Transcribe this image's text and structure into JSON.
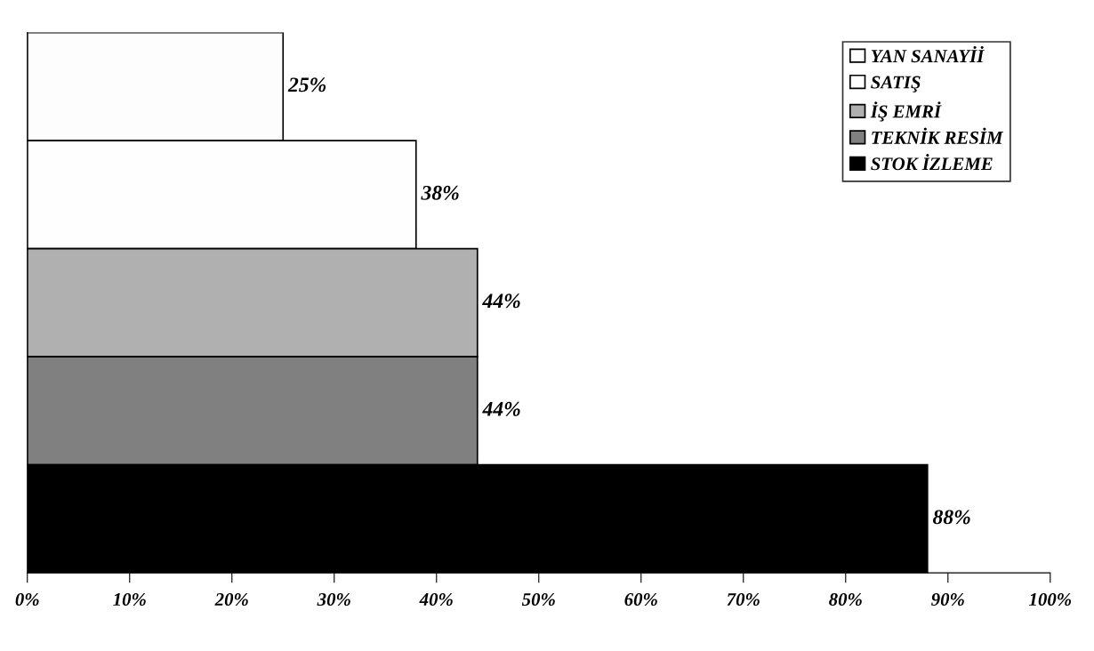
{
  "chart_data": {
    "type": "bar",
    "orientation": "horizontal",
    "categories": [
      null,
      null,
      null,
      null,
      null
    ],
    "series": [
      {
        "name": "YAN SANAYİİ",
        "color": "#fdfdfd",
        "values": [
          25,
          null,
          null,
          null,
          null
        ],
        "value_labels": [
          "25%",
          null,
          null,
          null,
          null
        ]
      },
      {
        "name": "SATIŞ",
        "color": "#fefefe",
        "values": [
          null,
          38,
          null,
          null,
          null
        ],
        "value_labels": [
          null,
          "38%",
          null,
          null,
          null
        ]
      },
      {
        "name": "İŞ EMRİ",
        "color": "#b0b0b0",
        "values": [
          null,
          null,
          44,
          null,
          null
        ],
        "value_labels": [
          null,
          null,
          "44%",
          null,
          null
        ]
      },
      {
        "name": "TEKNİK RESİM",
        "color": "#808080",
        "values": [
          null,
          null,
          null,
          44,
          null
        ],
        "value_labels": [
          null,
          null,
          null,
          "44%",
          null
        ]
      },
      {
        "name": "STOK İZLEME",
        "color": "#000000",
        "values": [
          null,
          null,
          null,
          null,
          88
        ],
        "value_labels": [
          null,
          null,
          null,
          null,
          "88%"
        ]
      }
    ],
    "xlim": [
      0,
      100
    ],
    "xticks": [
      {
        "value": 0,
        "label": "0%"
      },
      {
        "value": 10,
        "label": "10%"
      },
      {
        "value": 20,
        "label": "20%"
      },
      {
        "value": 30,
        "label": "30%"
      },
      {
        "value": 40,
        "label": "40%"
      },
      {
        "value": 50,
        "label": "50%"
      },
      {
        "value": 60,
        "label": "60%"
      },
      {
        "value": 70,
        "label": "70%"
      },
      {
        "value": 80,
        "label": "80%"
      },
      {
        "value": 90,
        "label": "90%"
      },
      {
        "value": 100,
        "label": "100%"
      }
    ],
    "legend": "top right",
    "grid": false
  }
}
